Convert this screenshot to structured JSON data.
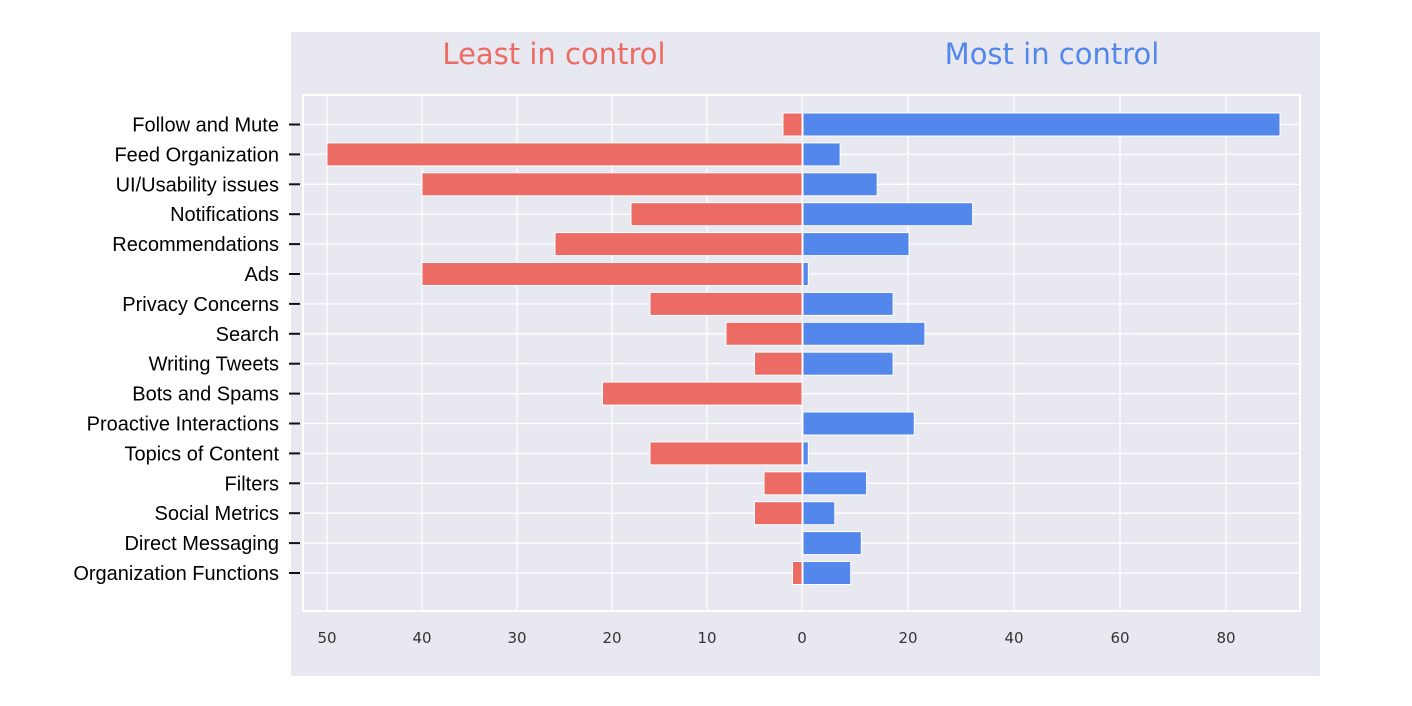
{
  "chart_data": {
    "type": "bar",
    "orientation": "horizontal",
    "layout": "diverging",
    "categories": [
      "Follow and Mute",
      "Feed Organization",
      "UI/Usability issues",
      "Notifications",
      "Recommendations",
      "Ads",
      "Privacy Concerns",
      "Search",
      "Writing Tweets",
      "Bots and Spams",
      "Proactive Interactions",
      "Topics of Content",
      "Filters",
      "Social Metrics",
      "Direct Messaging",
      "Organization Functions"
    ],
    "panels": [
      {
        "title": "Least in control",
        "color": "#ec6b65",
        "direction": "left",
        "xlim": [
          0,
          52
        ],
        "ticks": [
          50,
          40,
          30,
          20,
          10,
          0
        ],
        "values": [
          2,
          50,
          40,
          18,
          26,
          40,
          16,
          8,
          5,
          21,
          0,
          16,
          4,
          5,
          0,
          1
        ]
      },
      {
        "title": "Most in control",
        "color": "#5487ec",
        "direction": "right",
        "xlim": [
          0,
          92
        ],
        "ticks": [
          0,
          20,
          40,
          60,
          80
        ],
        "values": [
          90,
          7,
          14,
          32,
          20,
          1,
          17,
          23,
          17,
          0,
          21,
          1,
          12,
          6,
          11,
          9
        ]
      }
    ],
    "background": "#e8e8f0",
    "grid": true,
    "legend": false
  }
}
